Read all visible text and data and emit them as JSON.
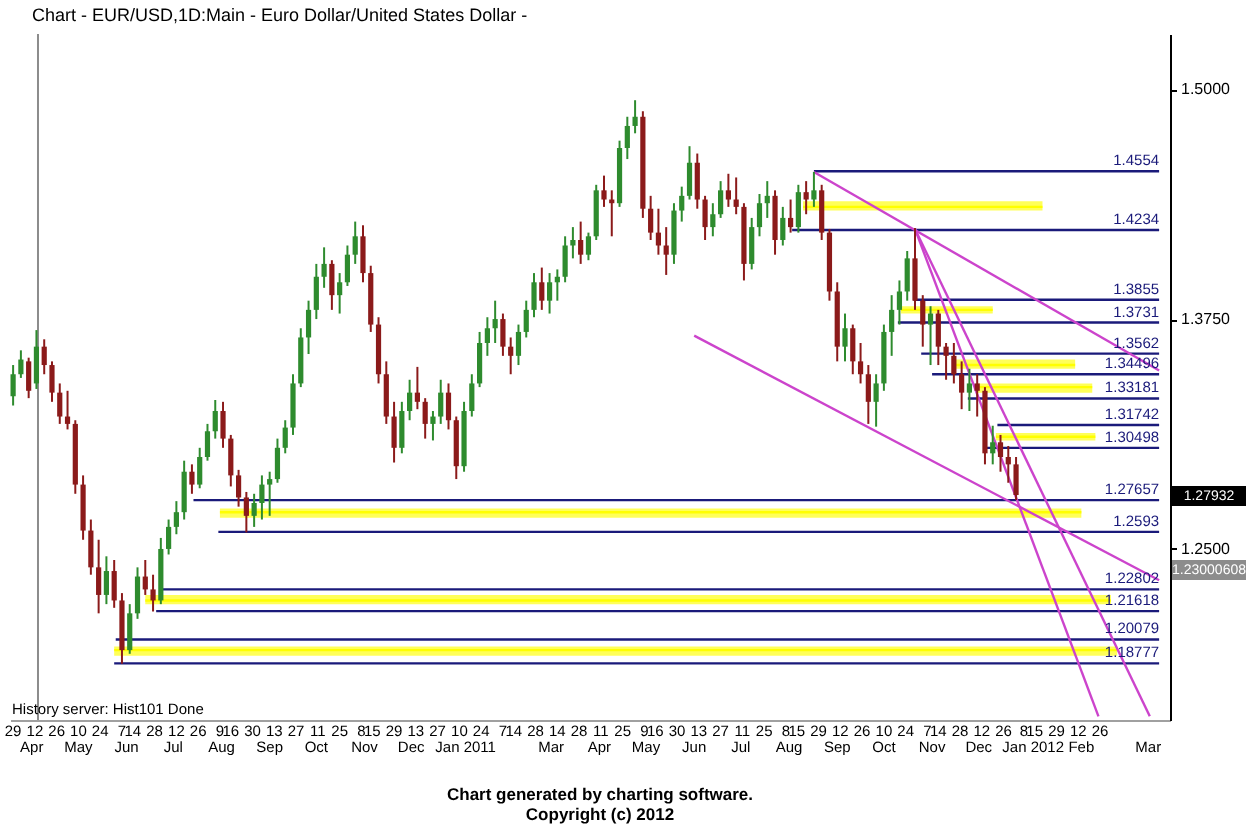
{
  "chart_data": {
    "type": "candlestick",
    "title": "Chart - EUR/USD,1D:Main - Euro Dollar/United States Dollar -",
    "x": [
      "2010-03-29",
      "2010-04-03",
      "2010-04-08",
      "2010-04-13",
      "2010-04-18",
      "2010-04-23",
      "2010-04-28",
      "2010-05-03",
      "2010-05-08",
      "2010-05-13",
      "2010-05-18",
      "2010-05-23",
      "2010-05-28",
      "2010-06-02",
      "2010-06-07",
      "2010-06-12",
      "2010-06-17",
      "2010-06-22",
      "2010-06-27",
      "2010-07-02",
      "2010-07-07",
      "2010-07-12",
      "2010-07-17",
      "2010-07-22",
      "2010-07-27",
      "2010-08-01",
      "2010-08-06",
      "2010-08-11",
      "2010-08-16",
      "2010-08-21",
      "2010-08-26",
      "2010-08-31",
      "2010-09-05",
      "2010-09-10",
      "2010-09-15",
      "2010-09-20",
      "2010-09-25",
      "2010-09-30",
      "2010-10-05",
      "2010-10-10",
      "2010-10-15",
      "2010-10-20",
      "2010-10-25",
      "2010-10-30",
      "2010-11-04",
      "2010-11-09",
      "2010-11-14",
      "2010-11-19",
      "2010-11-24",
      "2010-11-29",
      "2010-12-04",
      "2010-12-09",
      "2010-12-14",
      "2010-12-19",
      "2010-12-24",
      "2010-12-29",
      "2011-01-03",
      "2011-01-08",
      "2011-01-13",
      "2011-01-18",
      "2011-01-23",
      "2011-01-28",
      "2011-02-02",
      "2011-02-07",
      "2011-02-12",
      "2011-02-17",
      "2011-02-22",
      "2011-02-27",
      "2011-03-04",
      "2011-03-09",
      "2011-03-14",
      "2011-03-19",
      "2011-03-24",
      "2011-03-29",
      "2011-04-03",
      "2011-04-08",
      "2011-04-13",
      "2011-04-18",
      "2011-04-23",
      "2011-04-28",
      "2011-05-03",
      "2011-05-08",
      "2011-05-13",
      "2011-05-18",
      "2011-05-23",
      "2011-05-28",
      "2011-06-02",
      "2011-06-07",
      "2011-06-12",
      "2011-06-17",
      "2011-06-22",
      "2011-06-27",
      "2011-07-02",
      "2011-07-07",
      "2011-07-12",
      "2011-07-17",
      "2011-07-22",
      "2011-07-27",
      "2011-08-01",
      "2011-08-06",
      "2011-08-11",
      "2011-08-16",
      "2011-08-21",
      "2011-08-26",
      "2011-08-31",
      "2011-09-05",
      "2011-09-10",
      "2011-09-15",
      "2011-09-20",
      "2011-09-25",
      "2011-09-30",
      "2011-10-05",
      "2011-10-10",
      "2011-10-15",
      "2011-10-20",
      "2011-10-25",
      "2011-10-30",
      "2011-11-04",
      "2011-11-09",
      "2011-11-14",
      "2011-11-19",
      "2011-11-24",
      "2011-11-29",
      "2011-12-04",
      "2011-12-09",
      "2011-12-14",
      "2011-12-19",
      "2011-12-24",
      "2011-12-29",
      "2012-01-03"
    ],
    "ohlc": [
      [
        1.333,
        1.35,
        1.328,
        1.345
      ],
      [
        1.345,
        1.358,
        1.343,
        1.353
      ],
      [
        1.352,
        1.354,
        1.332,
        1.336
      ],
      [
        1.34,
        1.369,
        1.337,
        1.36
      ],
      [
        1.36,
        1.364,
        1.345,
        1.35
      ],
      [
        1.35,
        1.352,
        1.33,
        1.335
      ],
      [
        1.335,
        1.34,
        1.318,
        1.322
      ],
      [
        1.322,
        1.336,
        1.315,
        1.318
      ],
      [
        1.318,
        1.32,
        1.28,
        1.285
      ],
      [
        1.285,
        1.29,
        1.255,
        1.26
      ],
      [
        1.26,
        1.266,
        1.236,
        1.24
      ],
      [
        1.24,
        1.255,
        1.215,
        1.225
      ],
      [
        1.225,
        1.246,
        1.22,
        1.238
      ],
      [
        1.238,
        1.244,
        1.218,
        1.222
      ],
      [
        1.222,
        1.226,
        1.1876,
        1.195
      ],
      [
        1.195,
        1.22,
        1.193,
        1.215
      ],
      [
        1.215,
        1.24,
        1.212,
        1.235
      ],
      [
        1.235,
        1.244,
        1.225,
        1.228
      ],
      [
        1.228,
        1.236,
        1.216,
        1.222
      ],
      [
        1.222,
        1.256,
        1.22,
        1.25
      ],
      [
        1.25,
        1.266,
        1.247,
        1.262
      ],
      [
        1.262,
        1.276,
        1.258,
        1.27
      ],
      [
        1.27,
        1.298,
        1.266,
        1.292
      ],
      [
        1.292,
        1.296,
        1.28,
        1.285
      ],
      [
        1.285,
        1.305,
        1.283,
        1.3
      ],
      [
        1.3,
        1.318,
        1.298,
        1.314
      ],
      [
        1.314,
        1.331,
        1.31,
        1.325
      ],
      [
        1.325,
        1.33,
        1.305,
        1.31
      ],
      [
        1.31,
        1.312,
        1.284,
        1.29
      ],
      [
        1.29,
        1.293,
        1.273,
        1.278
      ],
      [
        1.278,
        1.281,
        1.259,
        1.268
      ],
      [
        1.268,
        1.28,
        1.262,
        1.275
      ],
      [
        1.275,
        1.29,
        1.266,
        1.285
      ],
      [
        1.285,
        1.292,
        1.268,
        1.288
      ],
      [
        1.288,
        1.31,
        1.286,
        1.305
      ],
      [
        1.305,
        1.32,
        1.302,
        1.316
      ],
      [
        1.316,
        1.345,
        1.312,
        1.34
      ],
      [
        1.34,
        1.37,
        1.338,
        1.365
      ],
      [
        1.365,
        1.385,
        1.356,
        1.38
      ],
      [
        1.38,
        1.405,
        1.375,
        1.398
      ],
      [
        1.398,
        1.414,
        1.392,
        1.405
      ],
      [
        1.405,
        1.407,
        1.38,
        1.388
      ],
      [
        1.388,
        1.4,
        1.378,
        1.395
      ],
      [
        1.395,
        1.415,
        1.393,
        1.41
      ],
      [
        1.41,
        1.428,
        1.405,
        1.42
      ],
      [
        1.42,
        1.426,
        1.395,
        1.4
      ],
      [
        1.4,
        1.404,
        1.368,
        1.372
      ],
      [
        1.372,
        1.376,
        1.34,
        1.345
      ],
      [
        1.345,
        1.352,
        1.318,
        1.322
      ],
      [
        1.322,
        1.33,
        1.297,
        1.305
      ],
      [
        1.305,
        1.33,
        1.302,
        1.325
      ],
      [
        1.325,
        1.342,
        1.32,
        1.335
      ],
      [
        1.335,
        1.349,
        1.326,
        1.33
      ],
      [
        1.33,
        1.332,
        1.31,
        1.318
      ],
      [
        1.318,
        1.325,
        1.309,
        1.322
      ],
      [
        1.322,
        1.342,
        1.318,
        1.335
      ],
      [
        1.335,
        1.34,
        1.315,
        1.32
      ],
      [
        1.32,
        1.322,
        1.288,
        1.295
      ],
      [
        1.295,
        1.33,
        1.292,
        1.325
      ],
      [
        1.325,
        1.345,
        1.322,
        1.34
      ],
      [
        1.34,
        1.368,
        1.338,
        1.362
      ],
      [
        1.362,
        1.376,
        1.355,
        1.37
      ],
      [
        1.37,
        1.385,
        1.362,
        1.375
      ],
      [
        1.375,
        1.378,
        1.355,
        1.36
      ],
      [
        1.36,
        1.365,
        1.345,
        1.355
      ],
      [
        1.355,
        1.372,
        1.35,
        1.368
      ],
      [
        1.368,
        1.385,
        1.365,
        1.38
      ],
      [
        1.38,
        1.4,
        1.376,
        1.395
      ],
      [
        1.395,
        1.403,
        1.38,
        1.385
      ],
      [
        1.385,
        1.4,
        1.378,
        1.395
      ],
      [
        1.395,
        1.402,
        1.385,
        1.398
      ],
      [
        1.398,
        1.42,
        1.395,
        1.415
      ],
      [
        1.415,
        1.425,
        1.408,
        1.418
      ],
      [
        1.418,
        1.428,
        1.405,
        1.41
      ],
      [
        1.41,
        1.422,
        1.407,
        1.42
      ],
      [
        1.42,
        1.448,
        1.418,
        1.445
      ],
      [
        1.445,
        1.453,
        1.436,
        1.44
      ],
      [
        1.44,
        1.445,
        1.42,
        1.438
      ],
      [
        1.438,
        1.472,
        1.436,
        1.468
      ],
      [
        1.468,
        1.485,
        1.462,
        1.48
      ],
      [
        1.48,
        1.494,
        1.476,
        1.485
      ],
      [
        1.485,
        1.488,
        1.43,
        1.435
      ],
      [
        1.435,
        1.442,
        1.418,
        1.422
      ],
      [
        1.422,
        1.435,
        1.41,
        1.415
      ],
      [
        1.415,
        1.425,
        1.399,
        1.41
      ],
      [
        1.41,
        1.438,
        1.405,
        1.434
      ],
      [
        1.434,
        1.447,
        1.428,
        1.442
      ],
      [
        1.442,
        1.469,
        1.44,
        1.46
      ],
      [
        1.46,
        1.465,
        1.435,
        1.44
      ],
      [
        1.44,
        1.442,
        1.418,
        1.425
      ],
      [
        1.425,
        1.438,
        1.42,
        1.432
      ],
      [
        1.432,
        1.45,
        1.43,
        1.445
      ],
      [
        1.445,
        1.454,
        1.436,
        1.44
      ],
      [
        1.44,
        1.452,
        1.432,
        1.436
      ],
      [
        1.436,
        1.438,
        1.396,
        1.405
      ],
      [
        1.405,
        1.43,
        1.402,
        1.425
      ],
      [
        1.425,
        1.443,
        1.42,
        1.438
      ],
      [
        1.438,
        1.45,
        1.43,
        1.442
      ],
      [
        1.442,
        1.445,
        1.41,
        1.418
      ],
      [
        1.418,
        1.436,
        1.415,
        1.43
      ],
      [
        1.43,
        1.44,
        1.422,
        1.425
      ],
      [
        1.425,
        1.448,
        1.422,
        1.444
      ],
      [
        1.444,
        1.45,
        1.432,
        1.44
      ],
      [
        1.44,
        1.455,
        1.436,
        1.445
      ],
      [
        1.445,
        1.448,
        1.418,
        1.422
      ],
      [
        1.422,
        1.424,
        1.385,
        1.39
      ],
      [
        1.39,
        1.395,
        1.352,
        1.36
      ],
      [
        1.36,
        1.378,
        1.352,
        1.37
      ],
      [
        1.37,
        1.372,
        1.345,
        1.352
      ],
      [
        1.352,
        1.362,
        1.34,
        1.345
      ],
      [
        1.345,
        1.35,
        1.318,
        1.33
      ],
      [
        1.33,
        1.345,
        1.3165,
        1.34
      ],
      [
        1.34,
        1.372,
        1.336,
        1.368
      ],
      [
        1.368,
        1.388,
        1.355,
        1.38
      ],
      [
        1.38,
        1.396,
        1.372,
        1.39
      ],
      [
        1.39,
        1.412,
        1.385,
        1.408
      ],
      [
        1.408,
        1.4245,
        1.38,
        1.385
      ],
      [
        1.385,
        1.388,
        1.36,
        1.372
      ],
      [
        1.372,
        1.382,
        1.35,
        1.378
      ],
      [
        1.378,
        1.38,
        1.35,
        1.36
      ],
      [
        1.36,
        1.362,
        1.342,
        1.355
      ],
      [
        1.355,
        1.362,
        1.34,
        1.345
      ],
      [
        1.345,
        1.352,
        1.326,
        1.335
      ],
      [
        1.335,
        1.348,
        1.325,
        1.34
      ],
      [
        1.34,
        1.345,
        1.322,
        1.336
      ],
      [
        1.336,
        1.338,
        1.296,
        1.302
      ],
      [
        1.302,
        1.317,
        1.296,
        1.308
      ],
      [
        1.308,
        1.312,
        1.292,
        1.3
      ],
      [
        1.3,
        1.306,
        1.286,
        1.296
      ],
      [
        1.296,
        1.3,
        1.2766,
        1.27932
      ]
    ],
    "colors": [
      "#2e8b2e",
      "#2e8b2e",
      "#8b1a1a",
      "#2e8b2e",
      "#8b1a1a",
      "#8b1a1a",
      "#8b1a1a",
      "#8b1a1a",
      "#8b1a1a",
      "#8b1a1a",
      "#8b1a1a",
      "#8b1a1a",
      "#2e8b2e",
      "#8b1a1a",
      "#8b1a1a",
      "#2e8b2e",
      "#2e8b2e",
      "#8b1a1a",
      "#8b1a1a",
      "#2e8b2e",
      "#2e8b2e",
      "#2e8b2e",
      "#2e8b2e",
      "#8b1a1a",
      "#2e8b2e",
      "#2e8b2e",
      "#2e8b2e",
      "#8b1a1a",
      "#8b1a1a",
      "#8b1a1a",
      "#8b1a1a",
      "#2e8b2e",
      "#2e8b2e",
      "#2e8b2e",
      "#2e8b2e",
      "#2e8b2e",
      "#2e8b2e",
      "#2e8b2e",
      "#2e8b2e",
      "#2e8b2e",
      "#2e8b2e",
      "#8b1a1a",
      "#2e8b2e",
      "#2e8b2e",
      "#2e8b2e",
      "#8b1a1a",
      "#8b1a1a",
      "#8b1a1a",
      "#8b1a1a",
      "#8b1a1a",
      "#2e8b2e",
      "#2e8b2e",
      "#8b1a1a",
      "#8b1a1a",
      "#2e8b2e",
      "#2e8b2e",
      "#8b1a1a",
      "#8b1a1a",
      "#2e8b2e",
      "#2e8b2e",
      "#2e8b2e",
      "#2e8b2e",
      "#2e8b2e",
      "#8b1a1a",
      "#8b1a1a",
      "#2e8b2e",
      "#2e8b2e",
      "#2e8b2e",
      "#8b1a1a",
      "#2e8b2e",
      "#2e8b2e",
      "#2e8b2e",
      "#2e8b2e",
      "#8b1a1a",
      "#2e8b2e",
      "#2e8b2e",
      "#8b1a1a",
      "#8b1a1a",
      "#2e8b2e",
      "#2e8b2e",
      "#2e8b2e",
      "#8b1a1a",
      "#8b1a1a",
      "#8b1a1a",
      "#8b1a1a",
      "#2e8b2e",
      "#2e8b2e",
      "#2e8b2e",
      "#8b1a1a",
      "#8b1a1a",
      "#2e8b2e",
      "#2e8b2e",
      "#8b1a1a",
      "#8b1a1a",
      "#8b1a1a",
      "#2e8b2e",
      "#2e8b2e",
      "#2e8b2e",
      "#8b1a1a",
      "#2e8b2e",
      "#8b1a1a",
      "#2e8b2e",
      "#8b1a1a",
      "#2e8b2e",
      "#8b1a1a",
      "#8b1a1a",
      "#8b1a1a",
      "#2e8b2e",
      "#8b1a1a",
      "#8b1a1a",
      "#8b1a1a",
      "#2e8b2e",
      "#2e8b2e",
      "#2e8b2e",
      "#2e8b2e",
      "#2e8b2e",
      "#8b1a1a",
      "#8b1a1a",
      "#2e8b2e",
      "#8b1a1a",
      "#8b1a1a",
      "#8b1a1a",
      "#8b1a1a",
      "#2e8b2e",
      "#8b1a1a",
      "#8b1a1a",
      "#2e8b2e",
      "#8b1a1a",
      "#8b1a1a",
      "#8b1a1a"
    ],
    "series": [
      {
        "type": "line",
        "color": "#ffff00",
        "x": [
          "2011-08-19",
          "2012-01-20"
        ],
        "values": [
          1.436,
          1.436
        ],
        "lower": [
          1.434,
          1.434
        ],
        "upper": [
          1.439,
          1.439
        ]
      },
      {
        "type": "line",
        "color": "#ffff00",
        "x": [
          "2011-10-21",
          "2011-12-19"
        ],
        "values": [
          1.38,
          1.38
        ],
        "lower": [
          1.378,
          1.378
        ],
        "upper": [
          1.382,
          1.382
        ]
      },
      {
        "type": "line",
        "color": "#ffff00",
        "x": [
          "2011-11-24",
          "2012-02-10"
        ],
        "values": [
          1.35,
          1.35
        ],
        "lower": [
          1.348,
          1.348
        ],
        "upper": [
          1.353,
          1.353
        ]
      },
      {
        "type": "line",
        "color": "#ffff00",
        "x": [
          "2011-12-09",
          "2012-02-21"
        ],
        "values": [
          1.338,
          1.338
        ],
        "lower": [
          1.335,
          1.335
        ],
        "upper": [
          1.34,
          1.34
        ]
      },
      {
        "type": "line",
        "color": "#ffff00",
        "x": [
          "2011-12-21",
          "2012-02-23"
        ],
        "values": [
          1.311,
          1.311
        ],
        "lower": [
          1.309,
          1.309
        ],
        "upper": [
          1.313,
          1.313
        ]
      },
      {
        "type": "line",
        "color": "#ffff00",
        "x": [
          "2010-08-09",
          "2012-02-14"
        ],
        "values": [
          1.27,
          1.27
        ],
        "lower": [
          1.267,
          1.267
        ],
        "upper": [
          1.272,
          1.272
        ]
      },
      {
        "type": "line",
        "color": "#ffff00",
        "x": [
          "2010-06-22",
          "2012-03-04"
        ],
        "values": [
          1.222,
          1.222
        ],
        "lower": [
          1.22,
          1.22
        ],
        "upper": [
          1.225,
          1.225
        ]
      },
      {
        "type": "line",
        "color": "#ffff00",
        "x": [
          "2010-06-02",
          "2012-03-08"
        ],
        "values": [
          1.195,
          1.195
        ],
        "lower": [
          1.192,
          1.192
        ],
        "upper": [
          1.197,
          1.197
        ]
      },
      {
        "type": "line",
        "name": "1.4554",
        "color": "#1a1a7a",
        "x": [
          "2011-08-26",
          "2012-04-04"
        ],
        "values": [
          1.4554,
          1.4554
        ]
      },
      {
        "type": "line",
        "name": "1.4234",
        "color": "#1a1a7a",
        "x": [
          "2011-08-12",
          "2012-04-04"
        ],
        "values": [
          1.4234,
          1.4234
        ]
      },
      {
        "type": "line",
        "name": "1.3855",
        "color": "#1a1a7a",
        "x": [
          "2011-10-29",
          "2012-04-04"
        ],
        "values": [
          1.3855,
          1.3855
        ]
      },
      {
        "type": "line",
        "name": "1.3731",
        "color": "#1a1a7a",
        "x": [
          "2011-10-19",
          "2012-04-04"
        ],
        "values": [
          1.3731,
          1.3731
        ]
      },
      {
        "type": "line",
        "name": "1.3562",
        "color": "#1a1a7a",
        "x": [
          "2011-11-03",
          "2012-04-04"
        ],
        "values": [
          1.3562,
          1.3562
        ]
      },
      {
        "type": "line",
        "name": "1.34496",
        "color": "#1a1a7a",
        "x": [
          "2011-11-10",
          "2012-04-04"
        ],
        "values": [
          1.34496,
          1.34496
        ]
      },
      {
        "type": "line",
        "name": "1.33181",
        "color": "#1a1a7a",
        "x": [
          "2011-12-03",
          "2012-04-04"
        ],
        "values": [
          1.33181,
          1.33181
        ]
      },
      {
        "type": "line",
        "name": "1.31742",
        "color": "#1a1a7a",
        "x": [
          "2011-12-22",
          "2012-04-04"
        ],
        "values": [
          1.31742,
          1.31742
        ]
      },
      {
        "type": "line",
        "name": "1.30498",
        "color": "#1a1a7a",
        "x": [
          "2011-12-13",
          "2012-04-04"
        ],
        "values": [
          1.30498,
          1.30498
        ]
      },
      {
        "type": "line",
        "name": "1.27657",
        "color": "#1a1a7a",
        "x": [
          "2010-07-23",
          "2012-04-04"
        ],
        "values": [
          1.27657,
          1.27657
        ]
      },
      {
        "type": "line",
        "name": "1.2593",
        "color": "#1a1a7a",
        "x": [
          "2010-08-08",
          "2012-04-04"
        ],
        "values": [
          1.2593,
          1.2593
        ]
      },
      {
        "type": "line",
        "name": "1.22802",
        "color": "#1a1a7a",
        "x": [
          "2010-07-01",
          "2012-04-04"
        ],
        "values": [
          1.22802,
          1.22802
        ]
      },
      {
        "type": "line",
        "name": "1.21618",
        "color": "#1a1a7a",
        "x": [
          "2010-06-29",
          "2012-04-04"
        ],
        "values": [
          1.21618,
          1.21618
        ]
      },
      {
        "type": "line",
        "name": "1.20079",
        "color": "#1a1a7a",
        "x": [
          "2010-06-03",
          "2012-04-04"
        ],
        "values": [
          1.20079,
          1.20079
        ]
      },
      {
        "type": "line",
        "name": "1.18777",
        "color": "#1a1a7a",
        "x": [
          "2010-06-02",
          "2012-04-04"
        ],
        "values": [
          1.18777,
          1.18777
        ]
      },
      {
        "type": "line",
        "color": "#cc44cc",
        "x": [
          "2011-08-26",
          "2012-04-04"
        ],
        "values": [
          1.455,
          1.347
        ]
      },
      {
        "type": "line",
        "color": "#cc44cc",
        "x": [
          "2011-06-10",
          "2012-04-04"
        ],
        "values": [
          1.366,
          1.233
        ]
      },
      {
        "type": "line",
        "color": "#cc44cc",
        "x": [
          "2011-10-30",
          "2012-02-25"
        ],
        "values": [
          1.424,
          1.159
        ]
      },
      {
        "type": "line",
        "color": "#cc44cc",
        "x": [
          "2011-10-30",
          "2012-03-29"
        ],
        "values": [
          1.424,
          1.159
        ]
      }
    ],
    "ref_lines": [
      {
        "axis": "x",
        "value": "2010-04-14",
        "color": "#8c8c8c"
      }
    ],
    "xlim": [
      "2010-03-27",
      "2012-04-11"
    ],
    "xticks": [
      {
        "value": "2010-03-29",
        "label": "29"
      },
      {
        "value": "2010-04-12",
        "label": "12"
      },
      {
        "value": "2010-04-26",
        "label": "26"
      },
      {
        "value": "2010-05-10",
        "label": "10"
      },
      {
        "value": "2010-05-24",
        "label": "24"
      },
      {
        "value": "2010-06-07",
        "label": "7"
      },
      {
        "value": "2010-06-14",
        "label": "14"
      },
      {
        "value": "2010-06-28",
        "label": "28"
      },
      {
        "value": "2010-07-12",
        "label": "12"
      },
      {
        "value": "2010-07-26",
        "label": "26"
      },
      {
        "value": "2010-08-09",
        "label": "9"
      },
      {
        "value": "2010-08-16",
        "label": "16"
      },
      {
        "value": "2010-08-30",
        "label": "30"
      },
      {
        "value": "2010-09-13",
        "label": "13"
      },
      {
        "value": "2010-09-27",
        "label": "27"
      },
      {
        "value": "2010-10-11",
        "label": "11"
      },
      {
        "value": "2010-10-25",
        "label": "25"
      },
      {
        "value": "2010-11-08",
        "label": "8"
      },
      {
        "value": "2010-11-15",
        "label": "15"
      },
      {
        "value": "2010-11-29",
        "label": "29"
      },
      {
        "value": "2010-12-13",
        "label": "13"
      },
      {
        "value": "2010-12-27",
        "label": "27"
      },
      {
        "value": "2011-01-10",
        "label": "10"
      },
      {
        "value": "2011-01-24",
        "label": "24"
      },
      {
        "value": "2011-02-07",
        "label": "7"
      },
      {
        "value": "2011-02-14",
        "label": "14"
      },
      {
        "value": "2011-02-28",
        "label": "28"
      },
      {
        "value": "2011-03-14",
        "label": "14"
      },
      {
        "value": "2011-03-28",
        "label": "28"
      },
      {
        "value": "2011-04-11",
        "label": "11"
      },
      {
        "value": "2011-04-25",
        "label": "25"
      },
      {
        "value": "2011-05-09",
        "label": "9"
      },
      {
        "value": "2011-05-16",
        "label": "16"
      },
      {
        "value": "2011-05-30",
        "label": "30"
      },
      {
        "value": "2011-06-13",
        "label": "13"
      },
      {
        "value": "2011-06-27",
        "label": "27"
      },
      {
        "value": "2011-07-11",
        "label": "11"
      },
      {
        "value": "2011-07-25",
        "label": "25"
      },
      {
        "value": "2011-08-08",
        "label": "8"
      },
      {
        "value": "2011-08-15",
        "label": "15"
      },
      {
        "value": "2011-08-29",
        "label": "29"
      },
      {
        "value": "2011-09-12",
        "label": "12"
      },
      {
        "value": "2011-09-26",
        "label": "26"
      },
      {
        "value": "2011-10-10",
        "label": "10"
      },
      {
        "value": "2011-10-24",
        "label": "24"
      },
      {
        "value": "2011-11-07",
        "label": "7"
      },
      {
        "value": "2011-11-14",
        "label": "14"
      },
      {
        "value": "2011-11-28",
        "label": "28"
      },
      {
        "value": "2011-12-12",
        "label": "12"
      },
      {
        "value": "2011-12-26",
        "label": "26"
      },
      {
        "value": "2012-01-08",
        "label": "8"
      },
      {
        "value": "2012-01-15",
        "label": "15"
      },
      {
        "value": "2012-01-29",
        "label": "29"
      },
      {
        "value": "2012-02-12",
        "label": "12"
      },
      {
        "value": "2012-02-26",
        "label": "26"
      }
    ],
    "x2lim": [
      "2010-03-27",
      "2012-04-11"
    ],
    "x2ticks": [
      {
        "value": "2010-04-10",
        "label": "Apr"
      },
      {
        "value": "2010-05-10",
        "label": "May"
      },
      {
        "value": "2010-06-10",
        "label": "Jun"
      },
      {
        "value": "2010-07-10",
        "label": "Jul"
      },
      {
        "value": "2010-08-10",
        "label": "Aug"
      },
      {
        "value": "2010-09-10",
        "label": "Sep"
      },
      {
        "value": "2010-10-10",
        "label": "Oct"
      },
      {
        "value": "2010-11-10",
        "label": "Nov"
      },
      {
        "value": "2010-12-10",
        "label": "Dec"
      },
      {
        "value": "2011-01-14",
        "label": "Jan 2011"
      },
      {
        "value": "2011-03-10",
        "label": "Mar"
      },
      {
        "value": "2011-04-10",
        "label": "Apr"
      },
      {
        "value": "2011-05-10",
        "label": "May"
      },
      {
        "value": "2011-06-10",
        "label": "Jun"
      },
      {
        "value": "2011-07-10",
        "label": "Jul"
      },
      {
        "value": "2011-08-10",
        "label": "Aug"
      },
      {
        "value": "2011-09-10",
        "label": "Sep"
      },
      {
        "value": "2011-10-10",
        "label": "Oct"
      },
      {
        "value": "2011-11-10",
        "label": "Nov"
      },
      {
        "value": "2011-12-10",
        "label": "Dec"
      },
      {
        "value": "2012-01-14",
        "label": "Jan 2012"
      },
      {
        "value": "2012-02-14",
        "label": "Feb"
      },
      {
        "value": "2012-03-28",
        "label": "Mar"
      }
    ],
    "ylim": [
      1.157,
      1.53
    ],
    "yticks": [
      {
        "value": 1.25,
        "label": "1.2500"
      },
      {
        "value": 1.375,
        "label": "1.3750"
      },
      {
        "value": 1.5,
        "label": "1.5000"
      }
    ],
    "annotations": [
      "1.27932",
      "1.23000608",
      "History server: Hist101 Done",
      "Chart generated by charting software.",
      "Copyright (c) 2012"
    ],
    "grid": false
  }
}
